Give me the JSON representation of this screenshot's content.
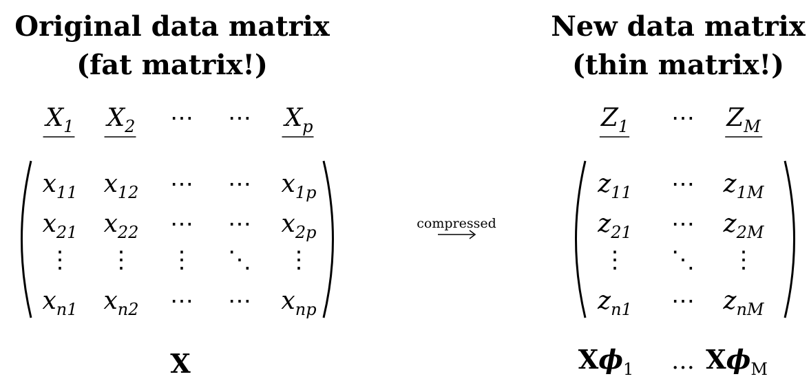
{
  "left": {
    "title_line1": "Original data matrix",
    "title_line2": "(fat matrix!)",
    "columns": [
      {
        "base": "X",
        "sub": "1"
      },
      {
        "base": "X",
        "sub": "2"
      },
      {
        "dots": "⋯"
      },
      {
        "dots": "⋯"
      },
      {
        "base": "X",
        "sub": "p"
      }
    ],
    "rows": [
      [
        {
          "base": "x",
          "sub": "11"
        },
        {
          "base": "x",
          "sub": "12"
        },
        {
          "dots": "⋯"
        },
        {
          "dots": "⋯"
        },
        {
          "base": "x",
          "sub": "1p"
        }
      ],
      [
        {
          "base": "x",
          "sub": "21"
        },
        {
          "base": "x",
          "sub": "22"
        },
        {
          "dots": "⋯"
        },
        {
          "dots": "⋯"
        },
        {
          "base": "x",
          "sub": "2p"
        }
      ],
      [
        {
          "dots": "⋮"
        },
        {
          "dots": "⋮"
        },
        {
          "dots": "⋮"
        },
        {
          "dots": "⋱"
        },
        {
          "dots": "⋮"
        }
      ],
      [
        {
          "base": "x",
          "sub": "n1"
        },
        {
          "base": "x",
          "sub": "n2"
        },
        {
          "dots": "⋯"
        },
        {
          "dots": "⋯"
        },
        {
          "base": "x",
          "sub": "np"
        }
      ]
    ],
    "label": "X"
  },
  "arrow": {
    "label": "compressed"
  },
  "right": {
    "title_line1": "New data matrix",
    "title_line2": "(thin matrix!)",
    "columns": [
      {
        "base": "Z",
        "sub": "1"
      },
      {
        "dots": "⋯"
      },
      {
        "base": "Z",
        "sub": "M"
      }
    ],
    "rows": [
      [
        {
          "base": "z",
          "sub": "11"
        },
        {
          "dots": "⋯"
        },
        {
          "base": "z",
          "sub": "1M"
        }
      ],
      [
        {
          "base": "z",
          "sub": "21"
        },
        {
          "dots": "⋯"
        },
        {
          "base": "z",
          "sub": "2M"
        }
      ],
      [
        {
          "dots": "⋮"
        },
        {
          "dots": "⋱"
        },
        {
          "dots": "⋮"
        }
      ],
      [
        {
          "base": "z",
          "sub": "n1"
        },
        {
          "dots": "⋯"
        },
        {
          "base": "z",
          "sub": "nM"
        }
      ]
    ],
    "label_parts": [
      {
        "bold": "X",
        "phi": "ϕ",
        "sub": "1"
      },
      {
        "dots": "…"
      },
      {
        "bold": "X",
        "phi": "ϕ",
        "sub": "M"
      }
    ]
  }
}
